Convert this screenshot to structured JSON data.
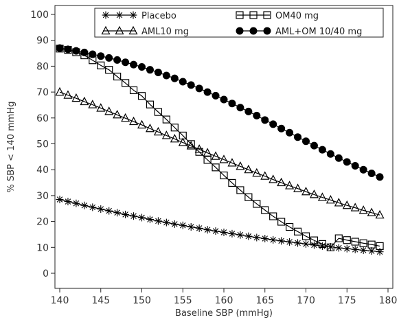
{
  "chart_data": {
    "type": "line",
    "xlabel": "Baseline SBP (mmHg)",
    "ylabel": "% SBP < 140 mmHg",
    "xlim": [
      140,
      180
    ],
    "ylim": [
      0,
      100
    ],
    "xticks": [
      140,
      145,
      150,
      155,
      160,
      165,
      170,
      175,
      180
    ],
    "yticks": [
      0,
      10,
      20,
      30,
      40,
      50,
      60,
      70,
      80,
      90,
      100
    ],
    "grid": false,
    "legend_position": "top",
    "x": [
      140,
      141,
      142,
      143,
      144,
      145,
      146,
      147,
      148,
      149,
      150,
      151,
      152,
      153,
      154,
      155,
      156,
      157,
      158,
      159,
      160,
      161,
      162,
      163,
      164,
      165,
      166,
      167,
      168,
      169,
      170,
      171,
      172,
      173,
      174,
      175,
      176,
      177,
      178,
      179
    ],
    "series": [
      {
        "name": "Placebo",
        "marker": "star",
        "color": "#000000",
        "values": [
          28.5,
          27.7,
          27.0,
          26.2,
          25.5,
          24.8,
          24.1,
          23.4,
          22.7,
          22.1,
          21.5,
          20.8,
          20.2,
          19.6,
          19.0,
          18.5,
          17.9,
          17.4,
          16.8,
          16.3,
          15.8,
          15.3,
          14.8,
          14.3,
          13.8,
          13.4,
          12.9,
          12.5,
          12.1,
          11.7,
          11.3,
          10.9,
          10.5,
          10.2,
          9.8,
          9.5,
          9.2,
          8.9,
          8.6,
          8.3
        ]
      },
      {
        "name": "OM40 mg",
        "marker": "open-square",
        "color": "#000000",
        "values": [
          86.8,
          86.3,
          85.4,
          84.2,
          82.3,
          80.3,
          78.6,
          76.0,
          73.5,
          70.7,
          68.5,
          65.2,
          62.3,
          59.4,
          56.3,
          53.2,
          49.9,
          46.9,
          43.8,
          40.9,
          37.8,
          34.9,
          32.1,
          29.4,
          26.8,
          24.4,
          22.0,
          19.9,
          17.9,
          16.1,
          14.3,
          12.7,
          11.3,
          10.0,
          13.5,
          12.8,
          12.2,
          11.6,
          11.1,
          10.5
        ]
      },
      {
        "name": "AML10 mg",
        "marker": "open-triangle",
        "color": "#000000",
        "values": [
          70.0,
          68.8,
          67.6,
          66.3,
          65.1,
          63.8,
          62.5,
          61.2,
          59.9,
          58.6,
          57.3,
          55.9,
          54.6,
          53.2,
          51.9,
          50.5,
          49.2,
          47.9,
          46.5,
          45.2,
          43.9,
          42.6,
          41.3,
          40.0,
          38.7,
          37.5,
          36.2,
          35.0,
          33.8,
          32.7,
          31.5,
          30.4,
          29.3,
          28.3,
          27.2,
          26.2,
          25.3,
          24.3,
          23.4,
          22.5
        ]
      },
      {
        "name": "AML+OM 10/40 mg",
        "marker": "filled-circle",
        "color": "#000000",
        "values": [
          87.0,
          86.5,
          85.9,
          85.3,
          84.6,
          83.9,
          83.2,
          82.4,
          81.5,
          80.6,
          79.7,
          78.6,
          77.6,
          76.4,
          75.3,
          74.0,
          72.7,
          71.4,
          70.0,
          68.6,
          67.1,
          65.6,
          64.0,
          62.5,
          60.9,
          59.2,
          57.6,
          55.9,
          54.3,
          52.6,
          51.0,
          49.3,
          47.7,
          46.1,
          44.5,
          43.0,
          41.5,
          40.0,
          38.6,
          37.2
        ]
      }
    ]
  }
}
